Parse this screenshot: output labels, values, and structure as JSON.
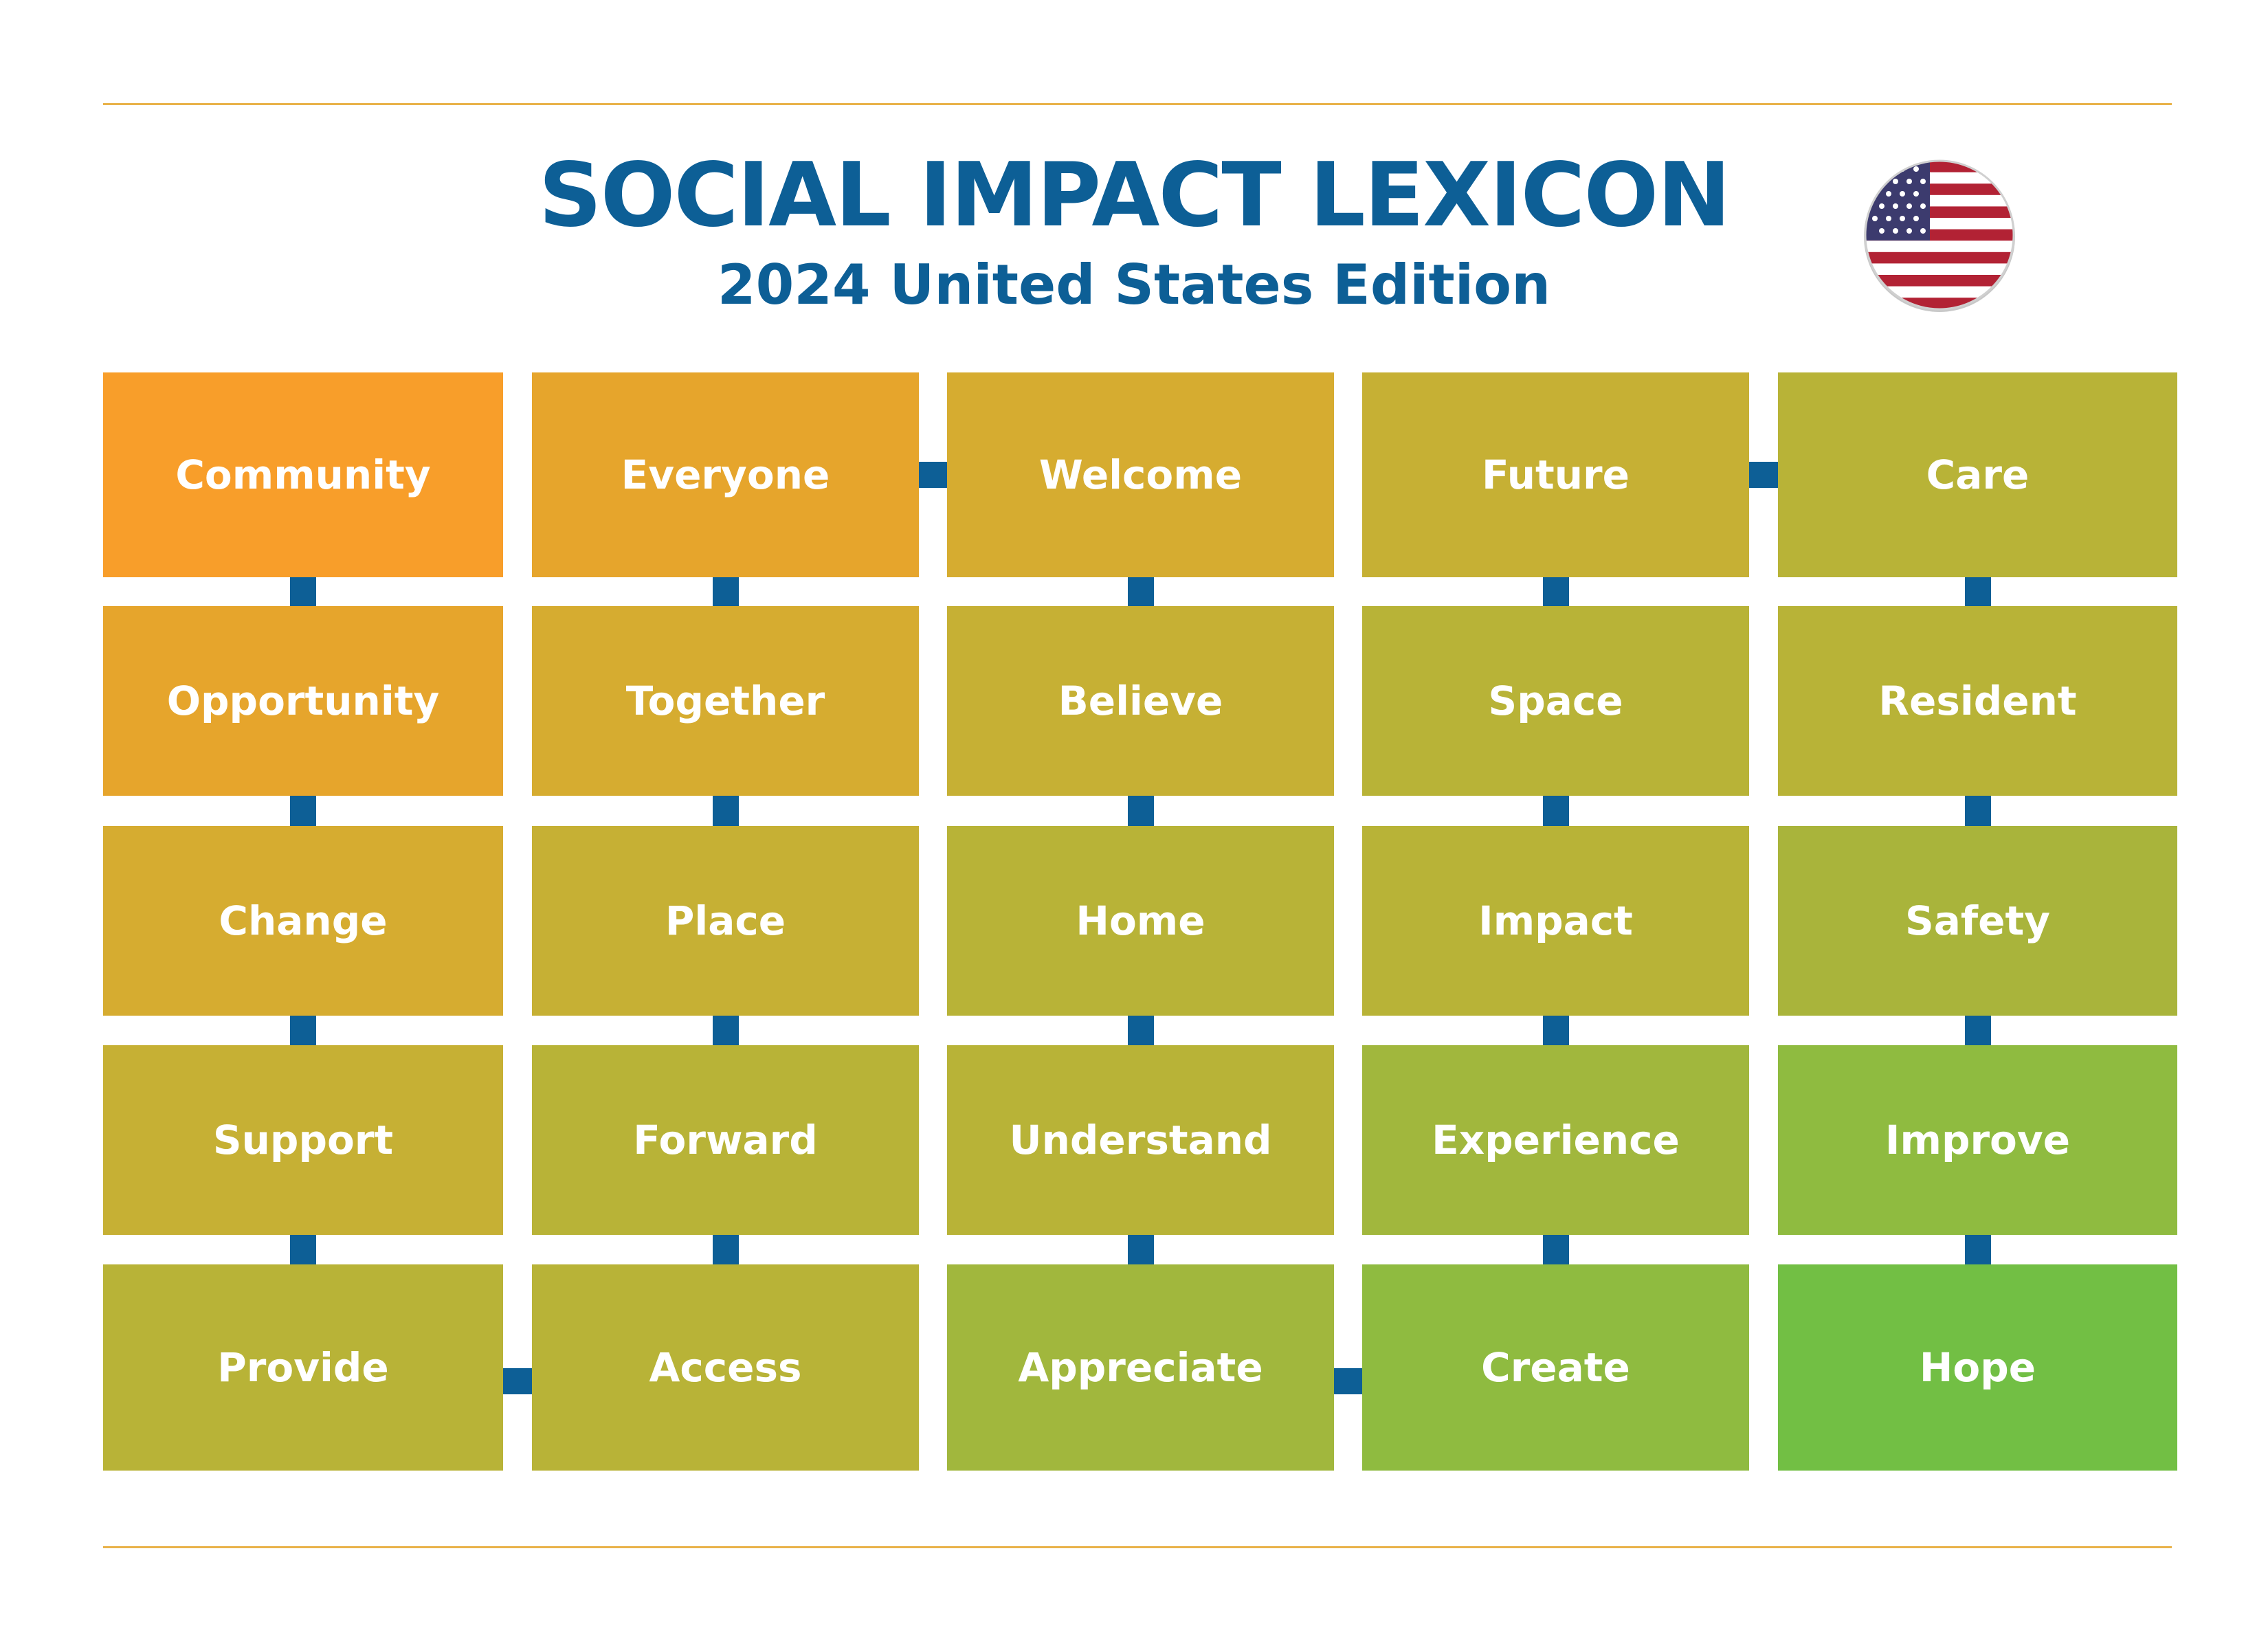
{
  "header": {
    "title": "SOCIAL IMPACT LEXICON",
    "subtitle": "2024 United States Edition"
  },
  "flag": {
    "icon": "us-flag-icon",
    "colors": {
      "red": "#b22234",
      "white": "#ffffff",
      "blue": "#3c3b6e"
    }
  },
  "colors": {
    "connector": "#0d5f96",
    "rule": "#e9b24a",
    "title": "#0d5f96"
  },
  "grid": {
    "rows": [
      [
        {
          "label": "Community",
          "color": "#f89e2a"
        },
        {
          "label": "Everyone",
          "color": "#e6a52c"
        },
        {
          "label": "Welcome",
          "color": "#d6ac30"
        },
        {
          "label": "Future",
          "color": "#c6b034"
        },
        {
          "label": "Care",
          "color": "#b8b337"
        }
      ],
      [
        {
          "label": "Opportunity",
          "color": "#e6a52c"
        },
        {
          "label": "Together",
          "color": "#d6ac30"
        },
        {
          "label": "Believe",
          "color": "#c6b034"
        },
        {
          "label": "Space",
          "color": "#b8b337"
        },
        {
          "label": "Resident",
          "color": "#b8b337"
        }
      ],
      [
        {
          "label": "Change",
          "color": "#d6ac30"
        },
        {
          "label": "Place",
          "color": "#c6b034"
        },
        {
          "label": "Home",
          "color": "#b8b337"
        },
        {
          "label": "Impact",
          "color": "#b8b337"
        },
        {
          "label": "Safety",
          "color": "#a9b43b"
        }
      ],
      [
        {
          "label": "Support",
          "color": "#c6b034"
        },
        {
          "label": "Forward",
          "color": "#b8b337"
        },
        {
          "label": "Understand",
          "color": "#b8b337"
        },
        {
          "label": "Experience",
          "color": "#a1b73d"
        },
        {
          "label": "Improve",
          "color": "#8fbb40"
        }
      ],
      [
        {
          "label": "Provide",
          "color": "#b8b337"
        },
        {
          "label": "Access",
          "color": "#b8b337"
        },
        {
          "label": "Appreciate",
          "color": "#a1b73d"
        },
        {
          "label": "Create",
          "color": "#8fbb40"
        },
        {
          "label": "Hope",
          "color": "#72bf44"
        }
      ]
    ],
    "horizontal_links": [
      {
        "row": 0,
        "from": 1,
        "to": 2
      },
      {
        "row": 0,
        "from": 3,
        "to": 4
      },
      {
        "row": 4,
        "from": 0,
        "to": 1
      },
      {
        "row": 4,
        "from": 2,
        "to": 3
      }
    ]
  }
}
